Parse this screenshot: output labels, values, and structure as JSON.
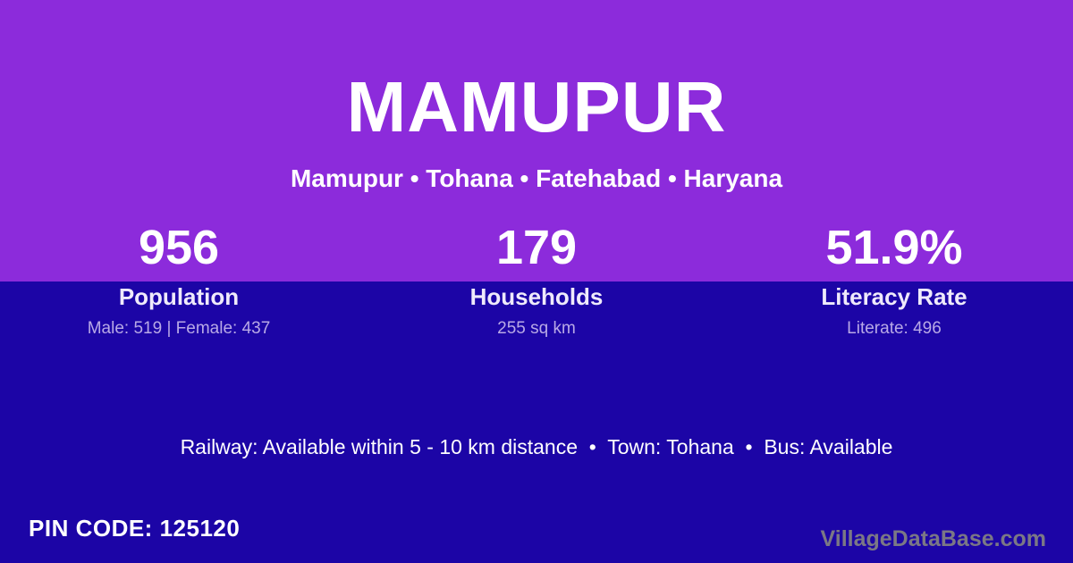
{
  "colors": {
    "purple": "#8C2BDB",
    "blue": "#1C05A6",
    "text-white": "#FFFFFF",
    "text-soft": "#EFEAFB",
    "text-lavender": "#B8A9E6",
    "branding-grey": "#7B7885"
  },
  "header": {
    "title": "MAMUPUR",
    "breadcrumb": "Mamupur • Tohana • Fatehabad • Haryana"
  },
  "stats": [
    {
      "value": "956",
      "label": "Population",
      "detail": "Male: 519 | Female: 437"
    },
    {
      "value": "179",
      "label": "Households",
      "detail": "255 sq km"
    },
    {
      "value": "51.9%",
      "label": "Literacy Rate",
      "detail": "Literate: 496"
    }
  ],
  "info_line": "Railway: Available within 5 - 10 km distance  •  Town: Tohana  •  Bus: Available",
  "footer": {
    "pin_code": "PIN CODE: 125120",
    "branding": "VillageDataBase.com"
  }
}
